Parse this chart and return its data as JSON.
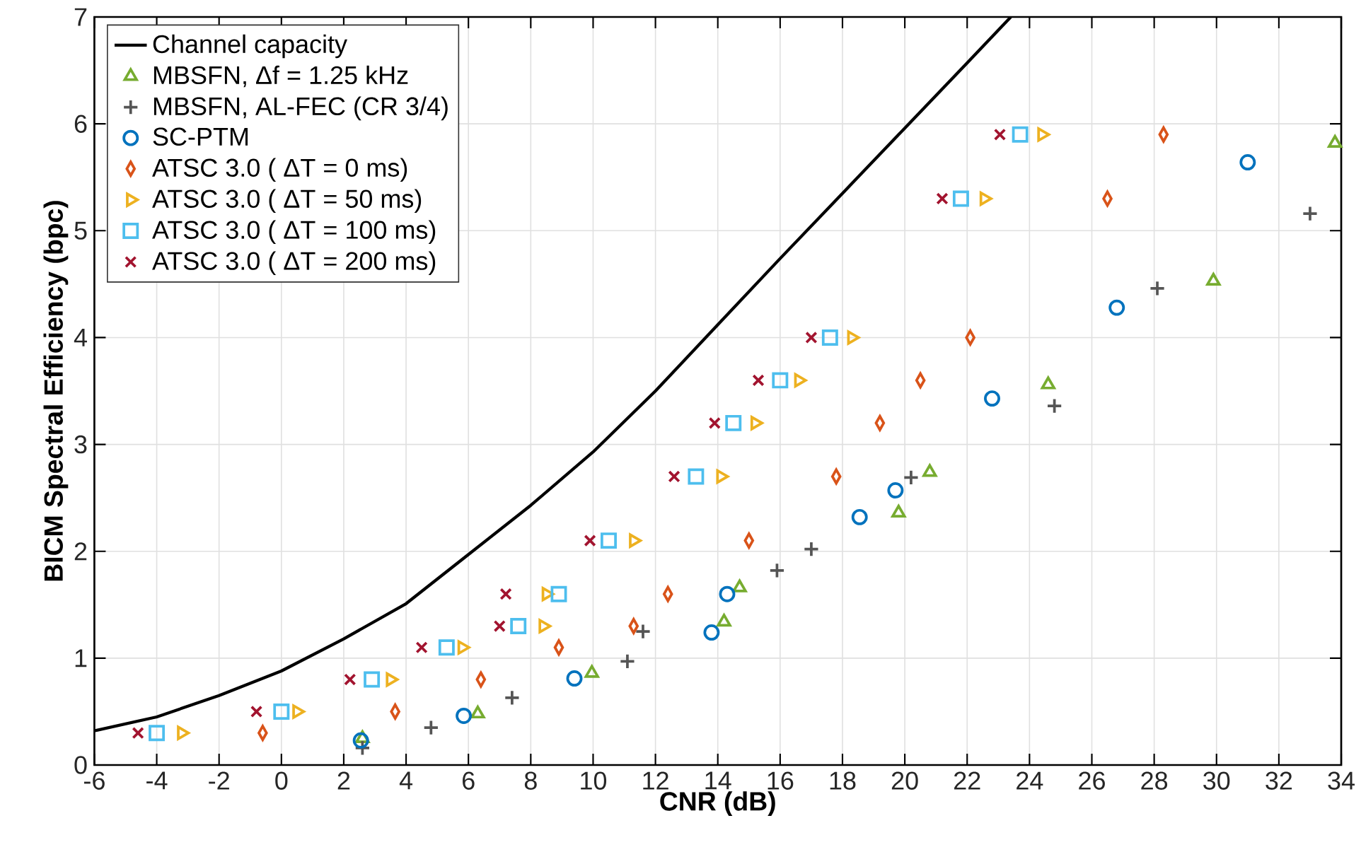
{
  "chart_data": {
    "type": "scatter",
    "xlabel": "**CNR (dB)**",
    "ylabel": "**BICM Spectral Efficiency (bpc)**",
    "xlim": [
      -6,
      34
    ],
    "ylim": [
      0,
      7
    ],
    "xticks": [
      -6,
      -4,
      -2,
      0,
      2,
      4,
      6,
      8,
      10,
      12,
      14,
      16,
      18,
      20,
      22,
      24,
      26,
      28,
      30,
      32,
      34
    ],
    "yticks": [
      0,
      1,
      2,
      3,
      4,
      5,
      6,
      7
    ],
    "grid": true,
    "legend": "top left",
    "series": [
      {
        "name": "Channel capacity",
        "type": "line",
        "marker": "none",
        "line_style": "solid",
        "color": "#000000",
        "x": [
          -6,
          -4,
          -2,
          0,
          2,
          4,
          6,
          8,
          10,
          12,
          14,
          16,
          18,
          20,
          22,
          23.4
        ],
        "values": [
          0.32,
          0.45,
          0.65,
          0.88,
          1.18,
          1.51,
          1.97,
          2.43,
          2.93,
          3.5,
          4.12,
          4.74,
          5.35,
          5.96,
          6.57,
          7.0
        ]
      },
      {
        "name": "MBSFN, Δf = 1.25 kHz",
        "marker": "triangle",
        "color": "#77ac30",
        "x": [
          2.6,
          6.3,
          9.96,
          14.2,
          14.7,
          19.8,
          20.8,
          24.6,
          29.9,
          33.8
        ],
        "values": [
          0.25,
          0.48,
          0.86,
          1.34,
          1.66,
          2.36,
          2.74,
          3.56,
          4.53,
          5.82
        ]
      },
      {
        "name": "MBSFN, AL-FEC (CR 3/4)",
        "marker": "plus",
        "color": "#555555",
        "x": [
          2.6,
          4.8,
          7.4,
          11.1,
          11.6,
          15.9,
          17.0,
          20.2,
          24.8,
          28.1,
          33.0
        ],
        "values": [
          0.16,
          0.35,
          0.63,
          0.97,
          1.25,
          1.82,
          2.02,
          2.69,
          3.36,
          4.46,
          5.16
        ]
      },
      {
        "name": "SC-PTM",
        "marker": "circle",
        "color": "#0072bd",
        "x": [
          2.55,
          5.85,
          9.4,
          13.8,
          14.3,
          18.55,
          19.7,
          22.8,
          26.8,
          31.0
        ],
        "values": [
          0.23,
          0.46,
          0.81,
          1.24,
          1.6,
          2.32,
          2.57,
          3.43,
          4.28,
          5.64
        ]
      },
      {
        "name": "ATSC 3.0 ( ΔT = 0 ms)",
        "marker": "diamond",
        "color": "#d95319",
        "x": [
          -0.6,
          3.65,
          6.4,
          8.9,
          11.3,
          12.4,
          15.0,
          17.8,
          19.2,
          20.5,
          22.1,
          26.5,
          28.3
        ],
        "values": [
          0.3,
          0.5,
          0.8,
          1.1,
          1.3,
          1.6,
          2.1,
          2.7,
          3.2,
          3.6,
          4.0,
          5.3,
          5.9
        ]
      },
      {
        "name": "ATSC 3.0 ( ΔT = 50 ms)",
        "marker": "triangle-right",
        "color": "#edb120",
        "x": [
          -3.2,
          0.5,
          3.5,
          5.8,
          8.4,
          8.5,
          11.3,
          14.1,
          15.2,
          16.6,
          18.3,
          22.55,
          24.4
        ],
        "values": [
          0.3,
          0.5,
          0.8,
          1.1,
          1.3,
          1.6,
          2.1,
          2.7,
          3.2,
          3.6,
          4.0,
          5.3,
          5.9
        ]
      },
      {
        "name": "ATSC 3.0 ( ΔT = 100 ms)",
        "marker": "square",
        "color": "#4dbeee",
        "x": [
          -4.0,
          0.0,
          2.9,
          5.3,
          7.6,
          8.9,
          10.5,
          13.3,
          14.5,
          16.0,
          17.6,
          21.8,
          23.7
        ],
        "values": [
          0.3,
          0.5,
          0.8,
          1.1,
          1.3,
          1.6,
          2.1,
          2.7,
          3.2,
          3.6,
          4.0,
          5.3,
          5.9
        ]
      },
      {
        "name": "ATSC 3.0 ( ΔT = 200 ms)",
        "marker": "cross",
        "color": "#a2142f",
        "x": [
          -4.6,
          -0.8,
          2.2,
          4.5,
          7.0,
          7.2,
          9.9,
          12.6,
          13.9,
          15.3,
          17.0,
          21.2,
          23.05
        ],
        "values": [
          0.3,
          0.5,
          0.8,
          1.1,
          1.3,
          1.6,
          2.1,
          2.7,
          3.2,
          3.6,
          4.0,
          5.3,
          5.9
        ]
      }
    ]
  }
}
